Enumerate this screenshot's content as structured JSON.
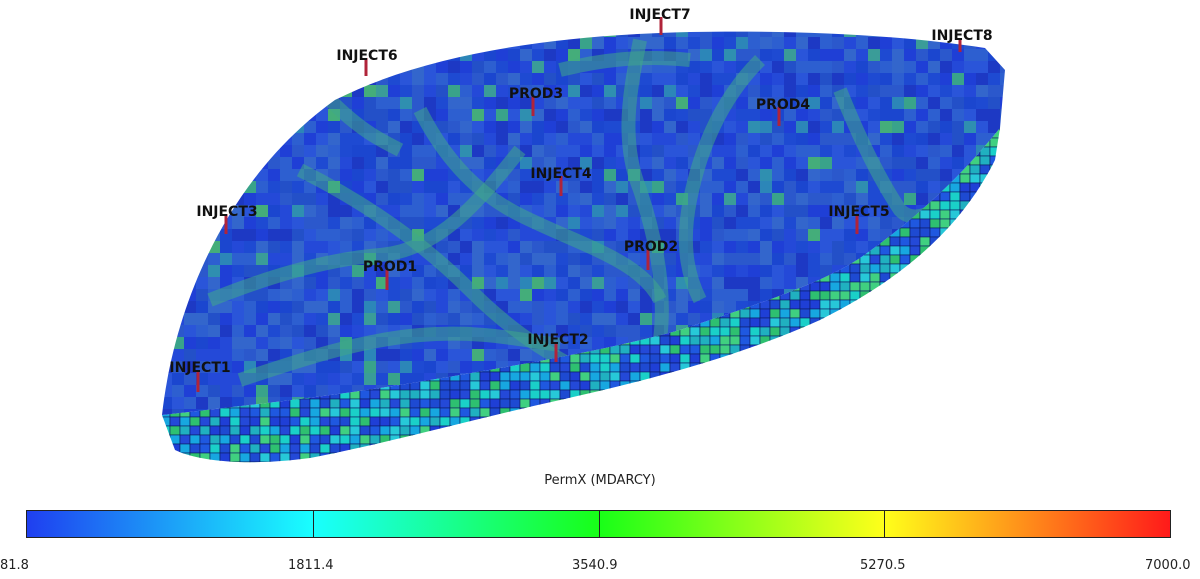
{
  "model_view": {
    "wells": [
      {
        "name": "INJECT7"
      },
      {
        "name": "INJECT8"
      },
      {
        "name": "INJECT6"
      },
      {
        "name": "PROD3"
      },
      {
        "name": "PROD4"
      },
      {
        "name": "INJECT4"
      },
      {
        "name": "INJECT3"
      },
      {
        "name": "INJECT5"
      },
      {
        "name": "PROD2"
      },
      {
        "name": "PROD1"
      },
      {
        "name": "INJECT2"
      },
      {
        "name": "INJECT1"
      }
    ],
    "well_color": "#b0243a",
    "label_color": "#111111"
  },
  "colorbar": {
    "title": "PermX (MDARCY)",
    "ticks": [
      "81.8",
      "1811.4",
      "3540.9",
      "5270.5",
      "7000.0"
    ],
    "min": 81.8,
    "max": 7000.0,
    "stops": [
      "#1f3ff0",
      "#19ffff",
      "#18ff18",
      "#ffff1a",
      "#ff1a1a"
    ]
  }
}
